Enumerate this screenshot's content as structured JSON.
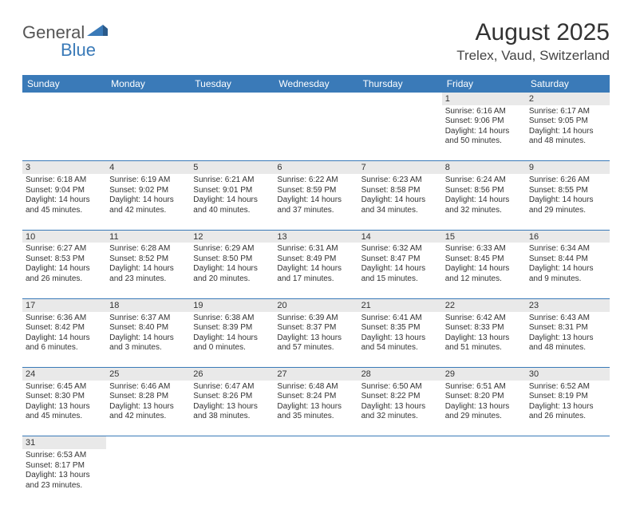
{
  "logo": {
    "text_a": "General",
    "text_b": "Blue"
  },
  "title": "August 2025",
  "location": "Trelex, Vaud, Switzerland",
  "colors": {
    "header_bg": "#3a7ab8",
    "header_text": "#ffffff",
    "daynum_bg": "#e9e9e9",
    "rule": "#3a7ab8",
    "logo_blue": "#3a7ab8"
  },
  "weekdays": [
    "Sunday",
    "Monday",
    "Tuesday",
    "Wednesday",
    "Thursday",
    "Friday",
    "Saturday"
  ],
  "days": [
    {
      "n": 1,
      "sunrise": "6:16 AM",
      "sunset": "9:06 PM",
      "dl1": "Daylight: 14 hours",
      "dl2": "and 50 minutes."
    },
    {
      "n": 2,
      "sunrise": "6:17 AM",
      "sunset": "9:05 PM",
      "dl1": "Daylight: 14 hours",
      "dl2": "and 48 minutes."
    },
    {
      "n": 3,
      "sunrise": "6:18 AM",
      "sunset": "9:04 PM",
      "dl1": "Daylight: 14 hours",
      "dl2": "and 45 minutes."
    },
    {
      "n": 4,
      "sunrise": "6:19 AM",
      "sunset": "9:02 PM",
      "dl1": "Daylight: 14 hours",
      "dl2": "and 42 minutes."
    },
    {
      "n": 5,
      "sunrise": "6:21 AM",
      "sunset": "9:01 PM",
      "dl1": "Daylight: 14 hours",
      "dl2": "and 40 minutes."
    },
    {
      "n": 6,
      "sunrise": "6:22 AM",
      "sunset": "8:59 PM",
      "dl1": "Daylight: 14 hours",
      "dl2": "and 37 minutes."
    },
    {
      "n": 7,
      "sunrise": "6:23 AM",
      "sunset": "8:58 PM",
      "dl1": "Daylight: 14 hours",
      "dl2": "and 34 minutes."
    },
    {
      "n": 8,
      "sunrise": "6:24 AM",
      "sunset": "8:56 PM",
      "dl1": "Daylight: 14 hours",
      "dl2": "and 32 minutes."
    },
    {
      "n": 9,
      "sunrise": "6:26 AM",
      "sunset": "8:55 PM",
      "dl1": "Daylight: 14 hours",
      "dl2": "and 29 minutes."
    },
    {
      "n": 10,
      "sunrise": "6:27 AM",
      "sunset": "8:53 PM",
      "dl1": "Daylight: 14 hours",
      "dl2": "and 26 minutes."
    },
    {
      "n": 11,
      "sunrise": "6:28 AM",
      "sunset": "8:52 PM",
      "dl1": "Daylight: 14 hours",
      "dl2": "and 23 minutes."
    },
    {
      "n": 12,
      "sunrise": "6:29 AM",
      "sunset": "8:50 PM",
      "dl1": "Daylight: 14 hours",
      "dl2": "and 20 minutes."
    },
    {
      "n": 13,
      "sunrise": "6:31 AM",
      "sunset": "8:49 PM",
      "dl1": "Daylight: 14 hours",
      "dl2": "and 17 minutes."
    },
    {
      "n": 14,
      "sunrise": "6:32 AM",
      "sunset": "8:47 PM",
      "dl1": "Daylight: 14 hours",
      "dl2": "and 15 minutes."
    },
    {
      "n": 15,
      "sunrise": "6:33 AM",
      "sunset": "8:45 PM",
      "dl1": "Daylight: 14 hours",
      "dl2": "and 12 minutes."
    },
    {
      "n": 16,
      "sunrise": "6:34 AM",
      "sunset": "8:44 PM",
      "dl1": "Daylight: 14 hours",
      "dl2": "and 9 minutes."
    },
    {
      "n": 17,
      "sunrise": "6:36 AM",
      "sunset": "8:42 PM",
      "dl1": "Daylight: 14 hours",
      "dl2": "and 6 minutes."
    },
    {
      "n": 18,
      "sunrise": "6:37 AM",
      "sunset": "8:40 PM",
      "dl1": "Daylight: 14 hours",
      "dl2": "and 3 minutes."
    },
    {
      "n": 19,
      "sunrise": "6:38 AM",
      "sunset": "8:39 PM",
      "dl1": "Daylight: 14 hours",
      "dl2": "and 0 minutes."
    },
    {
      "n": 20,
      "sunrise": "6:39 AM",
      "sunset": "8:37 PM",
      "dl1": "Daylight: 13 hours",
      "dl2": "and 57 minutes."
    },
    {
      "n": 21,
      "sunrise": "6:41 AM",
      "sunset": "8:35 PM",
      "dl1": "Daylight: 13 hours",
      "dl2": "and 54 minutes."
    },
    {
      "n": 22,
      "sunrise": "6:42 AM",
      "sunset": "8:33 PM",
      "dl1": "Daylight: 13 hours",
      "dl2": "and 51 minutes."
    },
    {
      "n": 23,
      "sunrise": "6:43 AM",
      "sunset": "8:31 PM",
      "dl1": "Daylight: 13 hours",
      "dl2": "and 48 minutes."
    },
    {
      "n": 24,
      "sunrise": "6:45 AM",
      "sunset": "8:30 PM",
      "dl1": "Daylight: 13 hours",
      "dl2": "and 45 minutes."
    },
    {
      "n": 25,
      "sunrise": "6:46 AM",
      "sunset": "8:28 PM",
      "dl1": "Daylight: 13 hours",
      "dl2": "and 42 minutes."
    },
    {
      "n": 26,
      "sunrise": "6:47 AM",
      "sunset": "8:26 PM",
      "dl1": "Daylight: 13 hours",
      "dl2": "and 38 minutes."
    },
    {
      "n": 27,
      "sunrise": "6:48 AM",
      "sunset": "8:24 PM",
      "dl1": "Daylight: 13 hours",
      "dl2": "and 35 minutes."
    },
    {
      "n": 28,
      "sunrise": "6:50 AM",
      "sunset": "8:22 PM",
      "dl1": "Daylight: 13 hours",
      "dl2": "and 32 minutes."
    },
    {
      "n": 29,
      "sunrise": "6:51 AM",
      "sunset": "8:20 PM",
      "dl1": "Daylight: 13 hours",
      "dl2": "and 29 minutes."
    },
    {
      "n": 30,
      "sunrise": "6:52 AM",
      "sunset": "8:19 PM",
      "dl1": "Daylight: 13 hours",
      "dl2": "and 26 minutes."
    },
    {
      "n": 31,
      "sunrise": "6:53 AM",
      "sunset": "8:17 PM",
      "dl1": "Daylight: 13 hours",
      "dl2": "and 23 minutes."
    }
  ],
  "layout": {
    "first_weekday_index": 5,
    "weeks": 6
  },
  "labels": {
    "sunrise": "Sunrise: ",
    "sunset": "Sunset: "
  }
}
